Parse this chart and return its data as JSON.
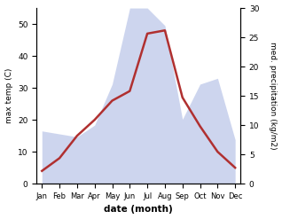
{
  "months": [
    "Jan",
    "Feb",
    "Mar",
    "Apr",
    "May",
    "Jun",
    "Jul",
    "Aug",
    "Sep",
    "Oct",
    "Nov",
    "Dec"
  ],
  "temp_max": [
    4,
    8,
    15,
    20,
    26,
    29,
    47,
    48,
    27,
    18,
    10,
    5
  ],
  "precipitation": [
    9,
    8.5,
    8,
    10,
    17,
    30,
    30,
    27,
    11,
    17,
    18,
    7.5
  ],
  "temp_color": "#b03030",
  "precip_fill_color": "#b8c4e8",
  "temp_ylim": [
    0,
    55
  ],
  "precip_ylim": [
    0,
    30
  ],
  "temp_yticks": [
    0,
    10,
    20,
    30,
    40,
    50
  ],
  "precip_yticks": [
    0,
    5,
    10,
    15,
    20,
    25,
    30
  ],
  "xlabel": "date (month)",
  "ylabel_left": "max temp (C)",
  "ylabel_right": "med. precipitation (kg/m2)",
  "figsize": [
    3.18,
    2.47
  ],
  "dpi": 100
}
